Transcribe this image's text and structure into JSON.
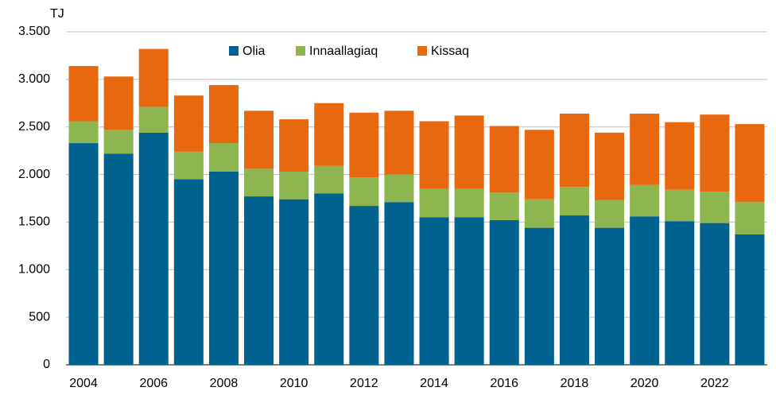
{
  "chart_data": {
    "type": "stacked_bar",
    "unit_label": "TJ",
    "categories": [
      "2004",
      null,
      "2006",
      null,
      "2008",
      null,
      "2010",
      null,
      "2012",
      null,
      "2014",
      null,
      "2016",
      null,
      "2018",
      null,
      "2020",
      null,
      "2022",
      null
    ],
    "series": [
      {
        "name": "Olia",
        "color": "#00628f",
        "values": [
          2330,
          2220,
          2440,
          1950,
          2030,
          1770,
          1740,
          1800,
          1670,
          1710,
          1550,
          1550,
          1520,
          1440,
          1570,
          1440,
          1560,
          1510,
          1490,
          1370
        ]
      },
      {
        "name": "Innaallagiaq",
        "color": "#8db550",
        "values": [
          230,
          250,
          270,
          290,
          300,
          290,
          290,
          290,
          300,
          290,
          300,
          300,
          290,
          300,
          300,
          290,
          330,
          330,
          330,
          340
        ]
      },
      {
        "name": "Kissaq",
        "color": "#e8680f",
        "values": [
          580,
          560,
          610,
          590,
          610,
          610,
          550,
          660,
          680,
          670,
          710,
          770,
          700,
          730,
          770,
          710,
          750,
          710,
          810,
          820
        ]
      }
    ],
    "ylim": [
      0,
      3500
    ],
    "yticks": [
      0,
      500,
      {
        "value": 1000,
        "label": "1.000"
      },
      {
        "value": 1500,
        "label": "1.500"
      },
      {
        "value": 2000,
        "label": "2.000"
      },
      {
        "value": 2500,
        "label": "2.500"
      },
      {
        "value": 3000,
        "label": "3.000"
      },
      {
        "value": 3500,
        "label": "3.500"
      }
    ],
    "grid": true,
    "legend": "top"
  }
}
